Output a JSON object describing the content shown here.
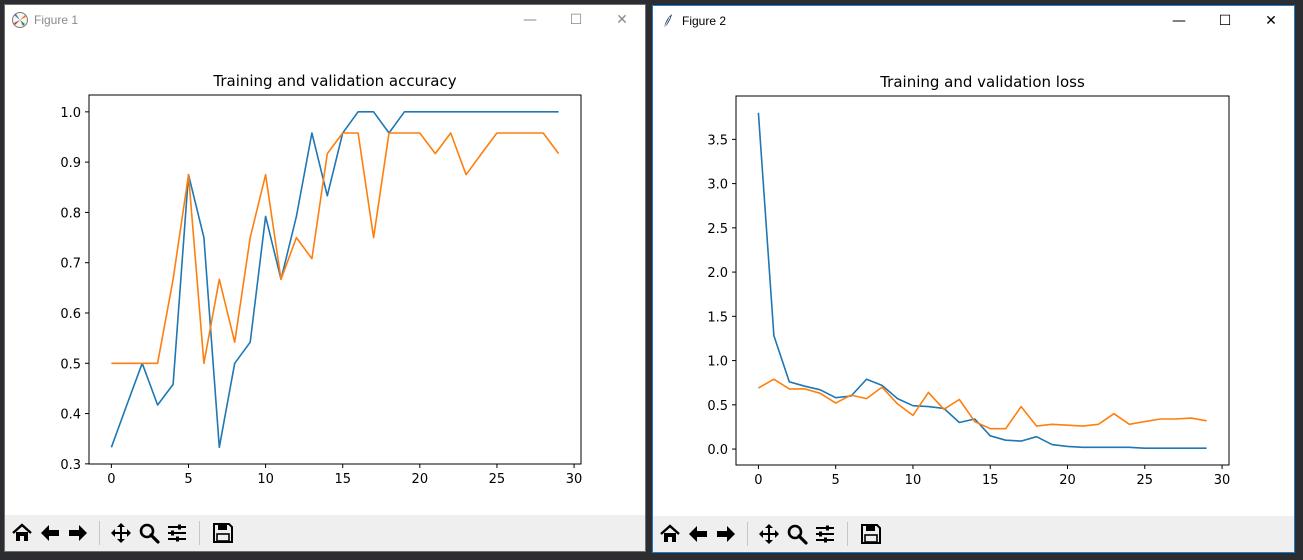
{
  "windows": [
    {
      "title": "Figure 1",
      "controls": {
        "minimize": "—",
        "maximize": "☐",
        "close": "✕"
      },
      "toolbar": [
        "home-icon",
        "back-arrow-icon",
        "forward-arrow-icon",
        "pan-icon",
        "zoom-icon",
        "configure-subplots-icon",
        "save-icon"
      ]
    },
    {
      "title": "Figure 2",
      "controls": {
        "minimize": "—",
        "maximize": "☐",
        "close": "✕"
      },
      "toolbar": [
        "home-icon",
        "back-arrow-icon",
        "forward-arrow-icon",
        "pan-icon",
        "zoom-icon",
        "configure-subplots-icon",
        "save-icon"
      ]
    }
  ],
  "colors": {
    "train": "#1f77b4",
    "val": "#ff7f0e"
  },
  "chart_data": [
    {
      "type": "line",
      "title": "Training and validation accuracy",
      "xlabel": "",
      "ylabel": "",
      "xlim": [
        -1.45,
        30.45
      ],
      "ylim": [
        0.2997,
        1.0335
      ],
      "xticks": [
        0,
        5,
        10,
        15,
        20,
        25,
        30
      ],
      "yticks": [
        0.3,
        0.4,
        0.5,
        0.6,
        0.7,
        0.8,
        0.9,
        1.0
      ],
      "ytick_labels": [
        "0.3",
        "0.4",
        "0.5",
        "0.6",
        "0.7",
        "0.8",
        "0.9",
        "1.0"
      ],
      "legend": "none",
      "grid": false,
      "x": [
        0,
        1,
        2,
        3,
        4,
        5,
        6,
        7,
        8,
        9,
        10,
        11,
        12,
        13,
        14,
        15,
        16,
        17,
        18,
        19,
        20,
        21,
        22,
        23,
        24,
        25,
        26,
        27,
        28,
        29
      ],
      "series": [
        {
          "values": [
            0.333,
            0.417,
            0.5,
            0.417,
            0.458,
            0.875,
            0.75,
            0.333,
            0.5,
            0.542,
            0.792,
            0.667,
            0.792,
            0.958,
            0.833,
            0.958,
            1.0,
            1.0,
            0.958,
            1.0,
            1.0,
            1.0,
            1.0,
            1.0,
            1.0,
            1.0,
            1.0,
            1.0,
            1.0,
            1.0
          ],
          "color": "#1f77b4"
        },
        {
          "values": [
            0.5,
            0.5,
            0.5,
            0.5,
            0.667,
            0.875,
            0.5,
            0.667,
            0.542,
            0.75,
            0.875,
            0.667,
            0.75,
            0.708,
            0.917,
            0.958,
            0.958,
            0.75,
            0.958,
            0.958,
            0.958,
            0.917,
            0.958,
            0.875,
            0.917,
            0.958,
            0.958,
            0.958,
            0.958,
            0.917
          ],
          "color": "#ff7f0e"
        }
      ]
    },
    {
      "type": "line",
      "title": "Training and validation loss",
      "xlabel": "",
      "ylabel": "",
      "xlim": [
        -1.45,
        30.45
      ],
      "ylim": [
        -0.18,
        3.99
      ],
      "xticks": [
        0,
        5,
        10,
        15,
        20,
        25,
        30
      ],
      "yticks": [
        0.0,
        0.5,
        1.0,
        1.5,
        2.0,
        2.5,
        3.0,
        3.5
      ],
      "ytick_labels": [
        "0.0",
        "0.5",
        "1.0",
        "1.5",
        "2.0",
        "2.5",
        "3.0",
        "3.5"
      ],
      "legend": "none",
      "grid": false,
      "x": [
        0,
        1,
        2,
        3,
        4,
        5,
        6,
        7,
        8,
        9,
        10,
        11,
        12,
        13,
        14,
        15,
        16,
        17,
        18,
        19,
        20,
        21,
        22,
        23,
        24,
        25,
        26,
        27,
        28,
        29
      ],
      "series": [
        {
          "values": [
            3.8,
            1.28,
            0.76,
            0.71,
            0.67,
            0.58,
            0.6,
            0.79,
            0.72,
            0.57,
            0.49,
            0.48,
            0.46,
            0.3,
            0.34,
            0.15,
            0.1,
            0.09,
            0.14,
            0.05,
            0.03,
            0.02,
            0.02,
            0.02,
            0.02,
            0.01,
            0.01,
            0.01,
            0.01,
            0.01
          ],
          "color": "#1f77b4"
        },
        {
          "values": [
            0.69,
            0.79,
            0.68,
            0.68,
            0.63,
            0.52,
            0.61,
            0.57,
            0.7,
            0.51,
            0.38,
            0.64,
            0.45,
            0.56,
            0.31,
            0.23,
            0.23,
            0.48,
            0.26,
            0.28,
            0.27,
            0.26,
            0.28,
            0.4,
            0.28,
            0.31,
            0.34,
            0.34,
            0.35,
            0.32
          ],
          "color": "#ff7f0e"
        }
      ]
    }
  ]
}
